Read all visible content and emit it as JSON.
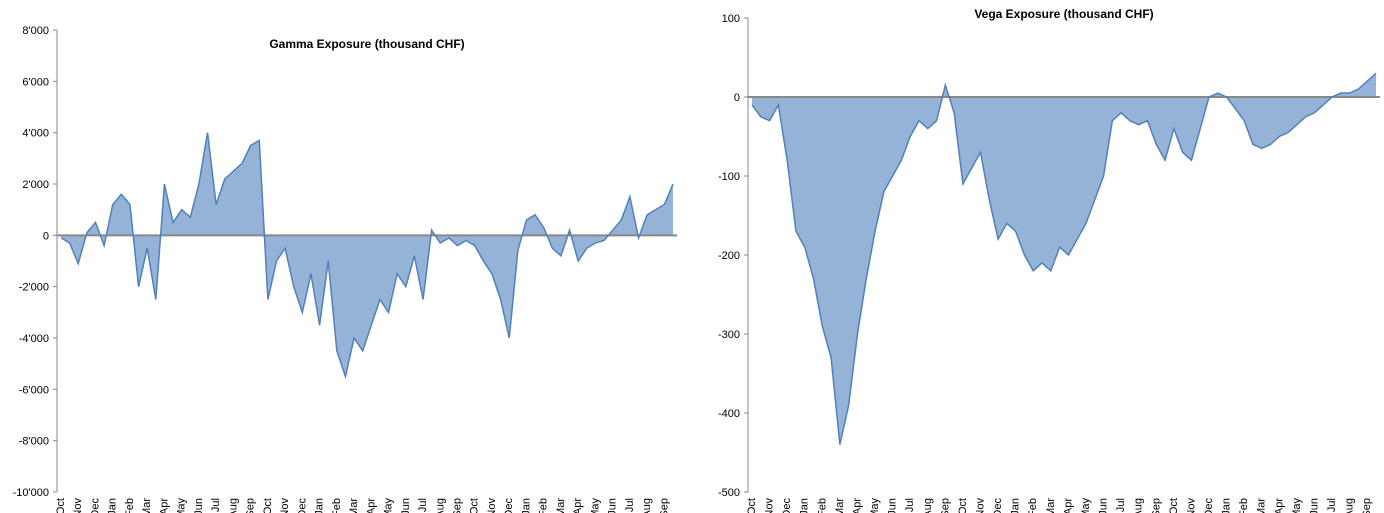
{
  "chart_data": [
    {
      "type": "area",
      "title": "Gamma Exposure  (thousand CHF)",
      "categories": [
        "Oct",
        null,
        "Nov",
        null,
        "Dec",
        null,
        "Jan",
        null,
        "Feb",
        null,
        "Mar",
        null,
        "Apr",
        null,
        "May",
        null,
        "Jun",
        null,
        "Jul",
        null,
        "Aug",
        null,
        "Sep",
        null,
        "Oct",
        null,
        "Nov",
        null,
        "Dec",
        null,
        "Jan",
        null,
        "Feb",
        null,
        "Mar",
        null,
        "Apr",
        null,
        "May",
        null,
        "Jun",
        null,
        "Jul",
        null,
        "Aug",
        null,
        "Sep",
        null,
        "Oct",
        null,
        "Nov",
        null,
        "Dec",
        null,
        "Jan",
        null,
        "Feb",
        null,
        "Mar",
        null,
        "Apr",
        null,
        "May",
        null,
        "Jun",
        null,
        "Jul",
        null,
        "Aug",
        null,
        "Sep",
        null
      ],
      "values": [
        -100,
        -300,
        -1100,
        100,
        500,
        -400,
        1200,
        1600,
        1200,
        -2000,
        -500,
        -2500,
        2000,
        500,
        1000,
        700,
        2000,
        4000,
        1200,
        2200,
        2500,
        2800,
        3500,
        3700,
        -2500,
        -1000,
        -500,
        -2000,
        -3000,
        -1500,
        -3500,
        -1000,
        -4500,
        -5500,
        -4000,
        -4500,
        -3500,
        -2500,
        -3000,
        -1500,
        -2000,
        -800,
        -2500,
        200,
        -300,
        -100,
        -400,
        -200,
        -400,
        -1000,
        -1500,
        -2500,
        -4000,
        -600,
        600,
        800,
        300,
        -500,
        -800,
        200,
        -1000,
        -500,
        -300,
        -200,
        200,
        600,
        1500,
        -100,
        800,
        1000,
        1200,
        2000
      ],
      "color": "#95b3d7",
      "line_color": "#4f81bd",
      "ylim": [
        -10000,
        8000
      ],
      "yticks": [
        {
          "value": -10000,
          "label": "-10'000"
        },
        {
          "value": -8000,
          "label": "-8'000"
        },
        {
          "value": -6000,
          "label": "-6'000"
        },
        {
          "value": -4000,
          "label": "-4'000"
        },
        {
          "value": -2000,
          "label": "-2'000"
        },
        0,
        {
          "value": 2000,
          "label": "2'000"
        },
        {
          "value": 4000,
          "label": "4'000"
        },
        {
          "value": 6000,
          "label": "6'000"
        },
        {
          "value": 8000,
          "label": "8'000"
        }
      ]
    },
    {
      "type": "area",
      "title": "Vega Exposure (thousand CHF)",
      "categories": [
        "Oct",
        null,
        "Nov",
        null,
        "Dec",
        null,
        "Jan",
        null,
        "Feb",
        null,
        "Mar",
        null,
        "Apr",
        null,
        "May",
        null,
        "Jun",
        null,
        "Jul",
        null,
        "Aug",
        null,
        "Sep",
        null,
        "Oct",
        null,
        "Nov",
        null,
        "Dec",
        null,
        "Jan",
        null,
        "Feb",
        null,
        "Mar",
        null,
        "Apr",
        null,
        "May",
        null,
        "Jun",
        null,
        "Jul",
        null,
        "Aug",
        null,
        "Sep",
        null,
        "Oct",
        null,
        "Nov",
        null,
        "Dec",
        null,
        "Jan",
        null,
        "Feb",
        null,
        "Mar",
        null,
        "Apr",
        null,
        "May",
        null,
        "Jun",
        null,
        "Jul",
        null,
        "Aug",
        null,
        "Sep",
        null
      ],
      "values": [
        -10,
        -25,
        -30,
        -10,
        -80,
        -170,
        -190,
        -230,
        -290,
        -330,
        -440,
        -390,
        -300,
        -230,
        -170,
        -120,
        -100,
        -80,
        -50,
        -30,
        -40,
        -30,
        15,
        -20,
        -110,
        -90,
        -70,
        -130,
        -180,
        -160,
        -170,
        -200,
        -220,
        -210,
        -220,
        -190,
        -200,
        -180,
        -160,
        -130,
        -100,
        -30,
        -20,
        -30,
        -35,
        -30,
        -60,
        -80,
        -40,
        -70,
        -80,
        -40,
        0,
        5,
        0,
        -15,
        -30,
        -60,
        -65,
        -60,
        -50,
        -45,
        -35,
        -25,
        -20,
        -10,
        0,
        5,
        5,
        10,
        20,
        30
      ],
      "color": "#95b3d7",
      "line_color": "#4f81bd",
      "ylim": [
        -500,
        100
      ],
      "yticks": [
        -500,
        -400,
        -300,
        -200,
        -100,
        0,
        100
      ]
    }
  ]
}
